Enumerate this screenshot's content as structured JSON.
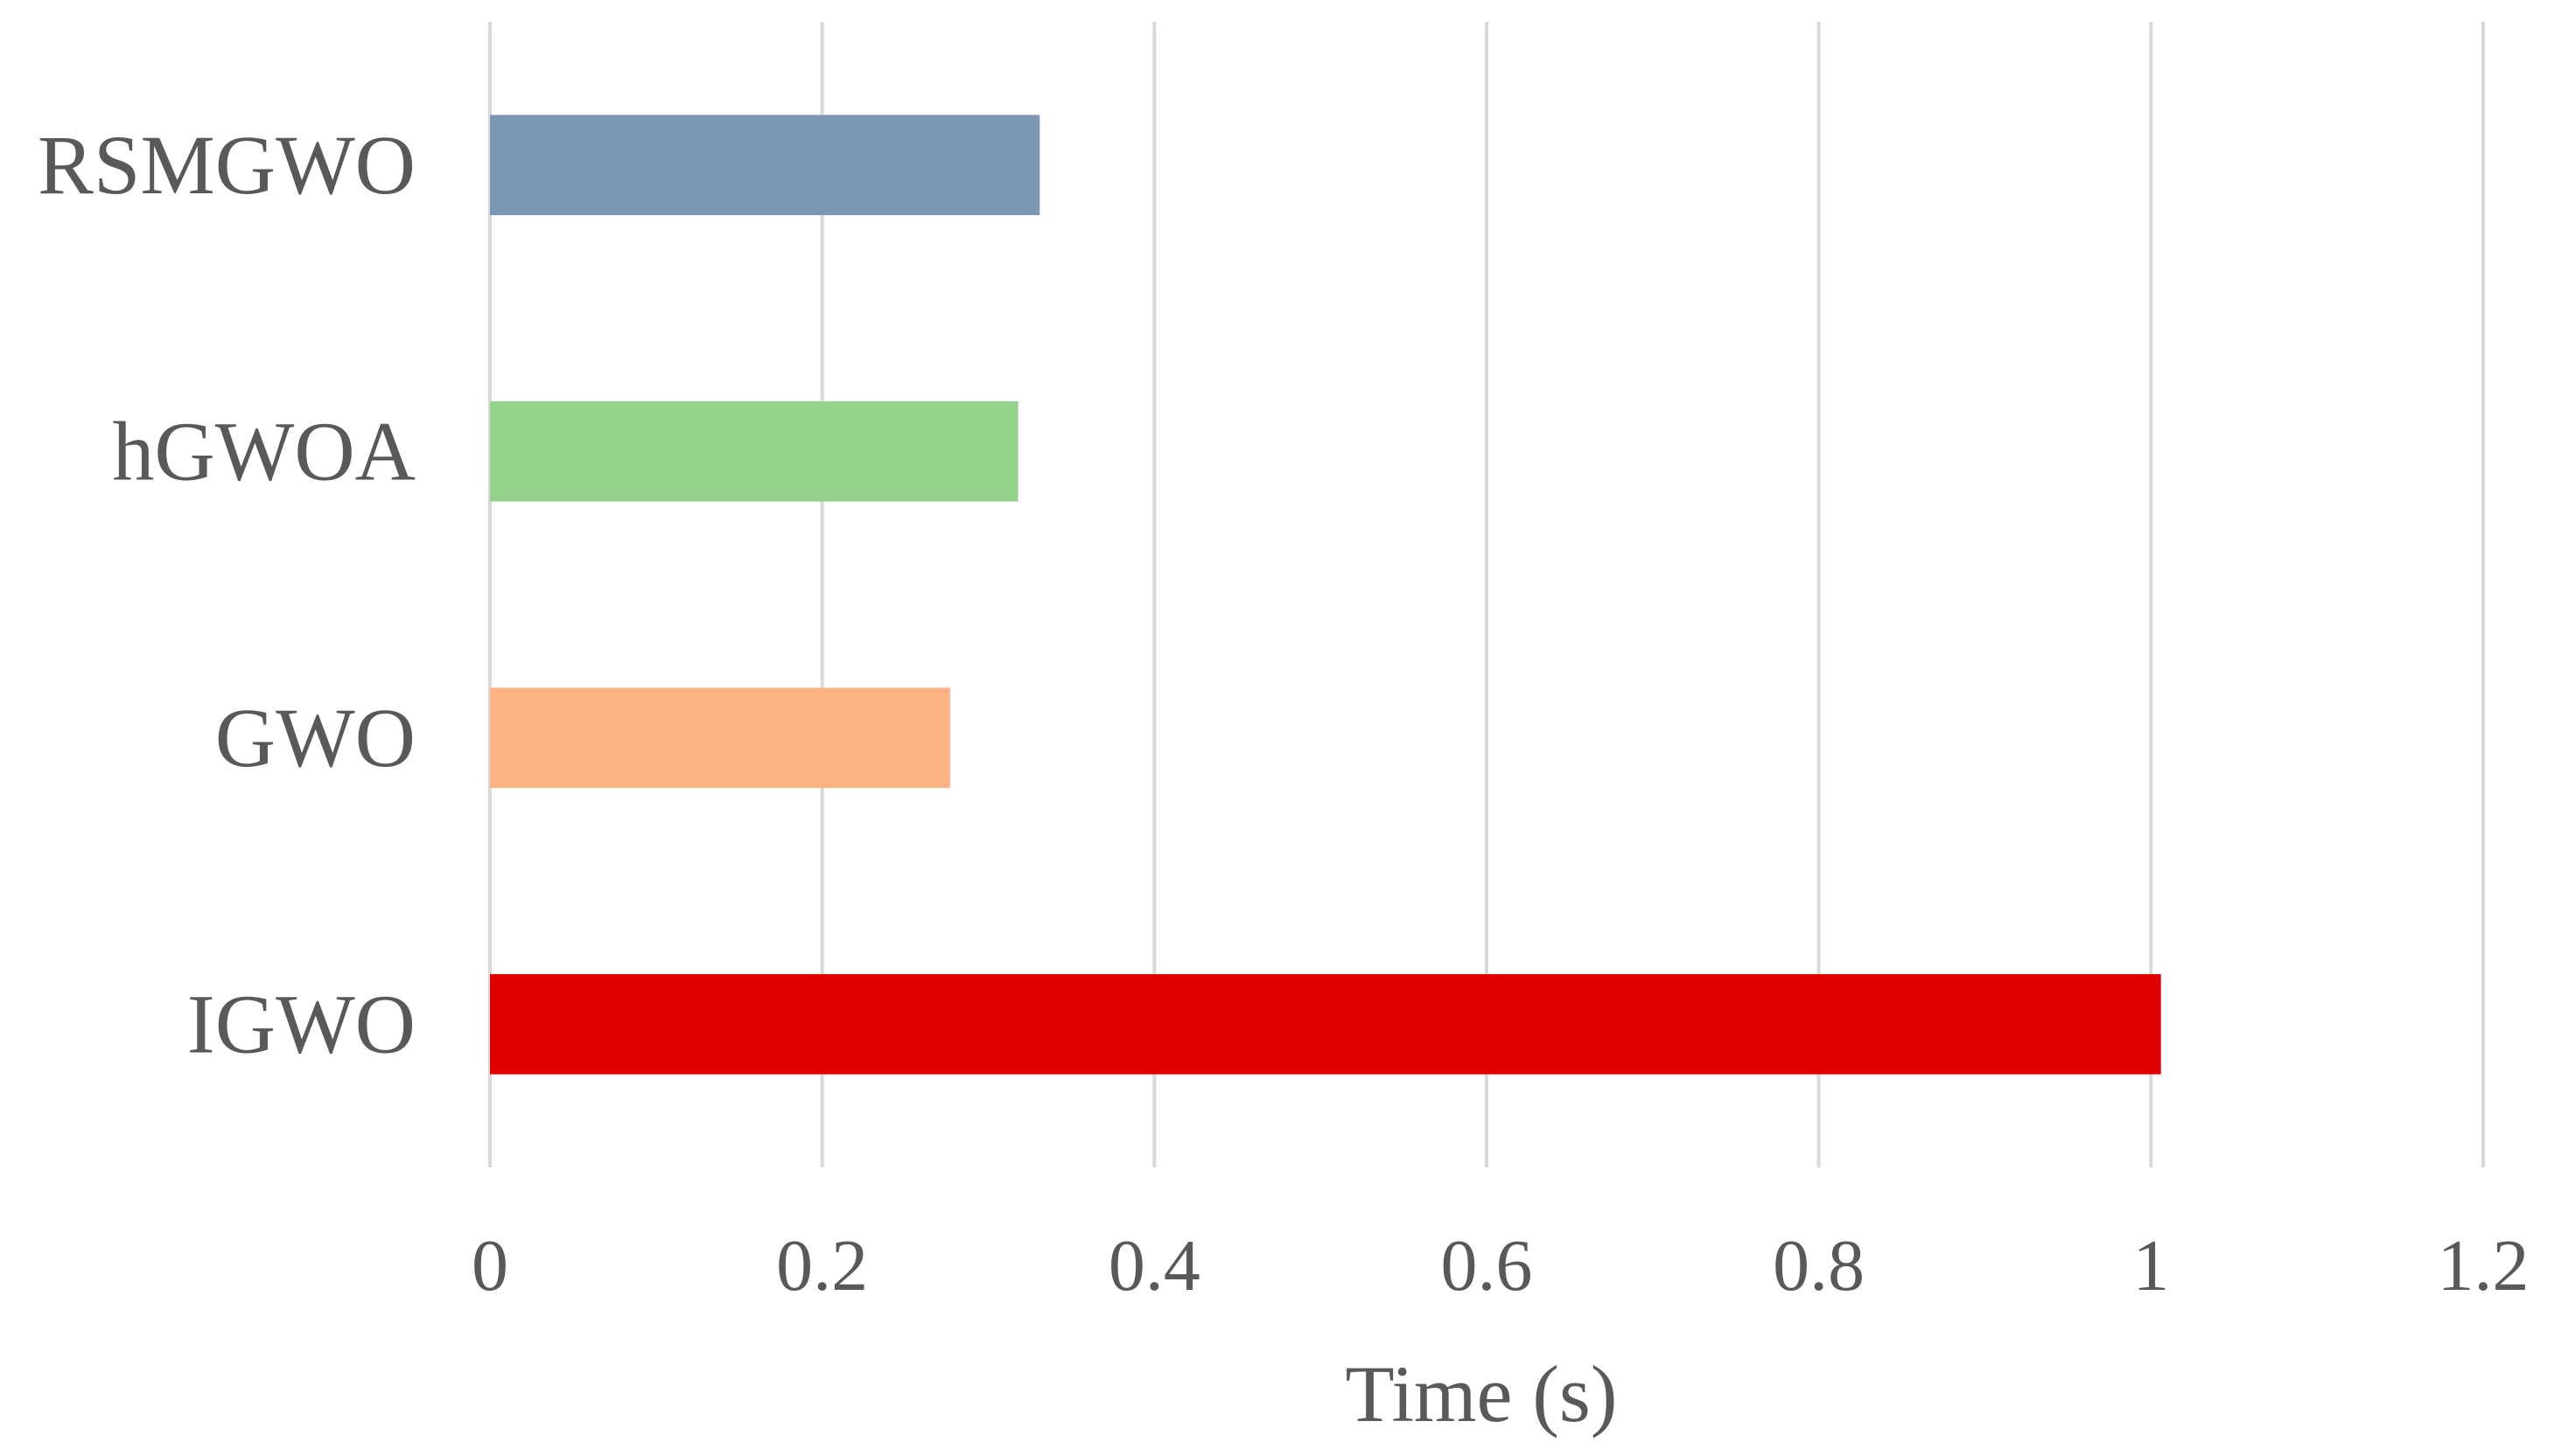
{
  "chart_data": {
    "type": "bar",
    "orientation": "horizontal",
    "title": "",
    "xlabel": "Time (s)",
    "ylabel": "",
    "xlim": [
      0,
      1.2
    ],
    "x_ticks": [
      "0",
      "0.2",
      "0.4",
      "0.6",
      "0.8",
      "1",
      "1.2"
    ],
    "x_tick_values": [
      0,
      0.2,
      0.4,
      0.6,
      0.8,
      1.0,
      1.2
    ],
    "grid": "vertical",
    "legend": "none",
    "categories": [
      "RSMGWO",
      "hGWOA",
      "GWO",
      "IGWO"
    ],
    "values": [
      0.331,
      0.318,
      0.277,
      1.006
    ],
    "colors": [
      "#7b97b4",
      "#94d38b",
      "#fdb283",
      "#e00000"
    ],
    "gridline_color": "#d9d9d9"
  }
}
